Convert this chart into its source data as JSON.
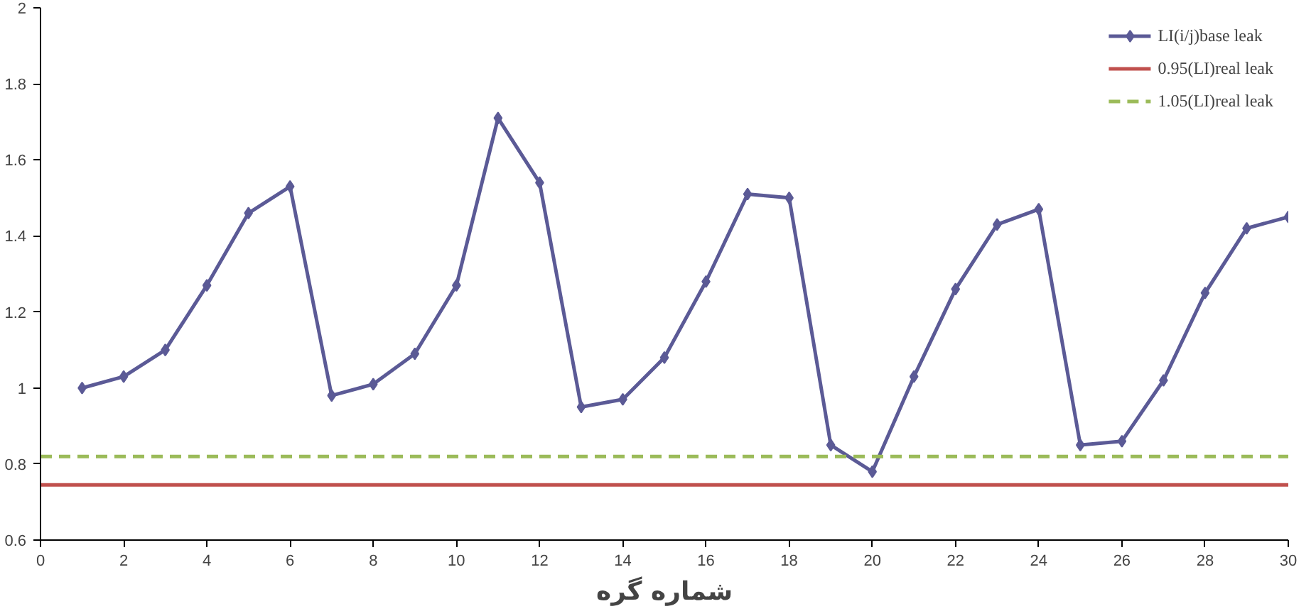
{
  "chart_data": {
    "type": "line",
    "xlabel": "شماره گره",
    "xlim": [
      0,
      30
    ],
    "ylim": [
      0.6,
      2
    ],
    "xticks": [
      0,
      2,
      4,
      6,
      8,
      10,
      12,
      14,
      16,
      18,
      20,
      22,
      24,
      26,
      28,
      30
    ],
    "yticks": [
      0.6,
      0.8,
      1,
      1.2,
      1.4,
      1.6,
      1.8,
      2
    ],
    "grid": false,
    "legend": "top right",
    "series": [
      {
        "name": "LI(i/j)base leak",
        "color": "#5b5a96",
        "marker": "diamond",
        "line_style": "solid",
        "x": [
          1,
          2,
          3,
          4,
          5,
          6,
          7,
          8,
          9,
          10,
          11,
          12,
          13,
          14,
          15,
          16,
          17,
          18,
          19,
          20,
          21,
          22,
          23,
          24,
          25,
          26,
          27,
          28,
          29,
          30
        ],
        "values": [
          1.0,
          1.03,
          1.1,
          1.27,
          1.46,
          1.53,
          0.98,
          1.01,
          1.09,
          1.27,
          1.71,
          1.54,
          0.95,
          0.97,
          1.08,
          1.28,
          1.51,
          1.5,
          0.85,
          0.78,
          1.03,
          1.26,
          1.43,
          1.47,
          0.85,
          0.86,
          1.02,
          1.25,
          1.42,
          1.45
        ]
      },
      {
        "name": "0.95(LI)real leak",
        "color": "#c0504d",
        "marker": "none",
        "line_style": "solid",
        "x": [
          0,
          30
        ],
        "values": [
          0.745,
          0.745
        ]
      },
      {
        "name": "1.05(LI)real leak",
        "color": "#9bbb59",
        "marker": "none",
        "line_style": "dashed",
        "x": [
          0,
          30
        ],
        "values": [
          0.82,
          0.82
        ]
      }
    ]
  }
}
